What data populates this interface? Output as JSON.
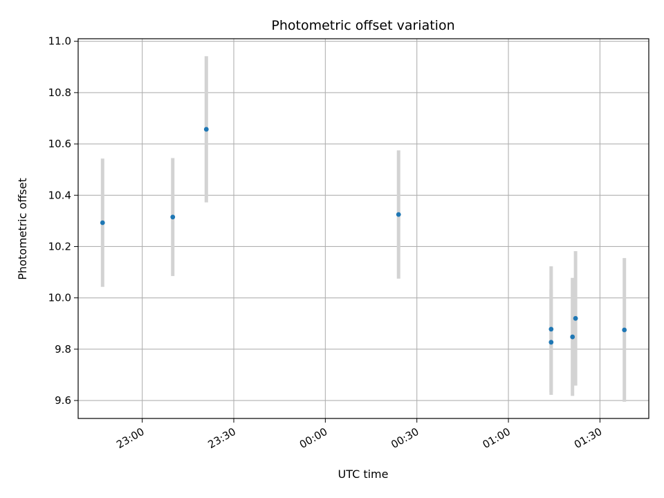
{
  "chart_data": {
    "type": "scatter",
    "title": "Photometric offset variation",
    "xlabel": "UTC time",
    "ylabel": "Photometric offset",
    "x_axis": "time (UTC)",
    "xlim": [
      "22:39",
      "01:46"
    ],
    "ylim": [
      9.53,
      11.01
    ],
    "x_ticks": [
      "23:00",
      "23:30",
      "00:00",
      "00:30",
      "01:00",
      "01:30"
    ],
    "y_ticks": [
      "9.6",
      "9.8",
      "10.0",
      "10.2",
      "10.4",
      "10.6",
      "10.8",
      "11.0"
    ],
    "grid": true,
    "series": [
      {
        "marker_color": "#1f77b4",
        "errorbar_color": "#d3d3d3",
        "points": [
          {
            "time": "22:47",
            "y": 10.293,
            "yerr": 0.25
          },
          {
            "time": "23:10",
            "y": 10.315,
            "yerr": 0.23
          },
          {
            "time": "23:21",
            "y": 10.657,
            "yerr": 0.285
          },
          {
            "time": "00:24",
            "y": 10.325,
            "yerr": 0.25
          },
          {
            "time": "01:14",
            "y": 9.878,
            "yerr": 0.245
          },
          {
            "time": "01:14",
            "y": 9.827,
            "yerr": 0.205
          },
          {
            "time": "01:21",
            "y": 9.848,
            "yerr": 0.23
          },
          {
            "time": "01:22",
            "y": 9.92,
            "yerr": 0.262
          },
          {
            "time": "01:38",
            "y": 9.875,
            "yerr": 0.28
          }
        ]
      }
    ]
  }
}
